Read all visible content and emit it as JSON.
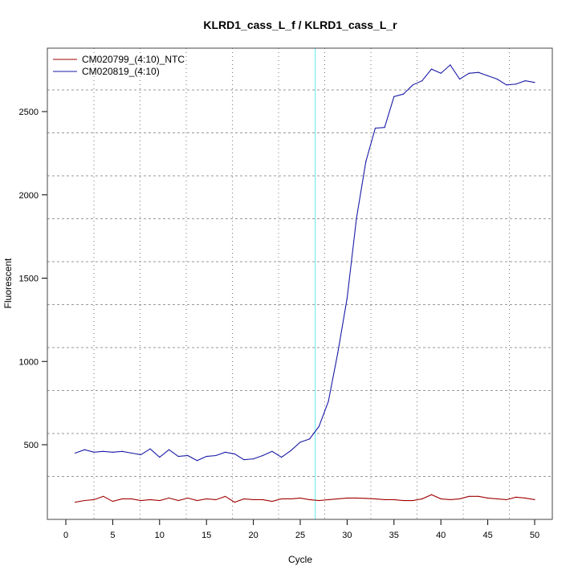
{
  "chart_data": {
    "type": "line",
    "title": "KLRD1_cass_L_f / KLRD1_cass_L_r",
    "xlabel": "Cycle",
    "ylabel": "Fluorescent",
    "xlim": [
      -2,
      52.5
    ],
    "ylim": [
      0,
      2825
    ],
    "xticks": [
      0,
      5,
      10,
      15,
      20,
      25,
      30,
      35,
      40,
      45,
      50
    ],
    "yticks": [
      500,
      1000,
      1500,
      2000,
      2500
    ],
    "threshold_cycle": 26.6,
    "legend_position": "top-left",
    "x": [
      1,
      2,
      3,
      4,
      5,
      6,
      7,
      8,
      9,
      10,
      11,
      12,
      13,
      14,
      15,
      16,
      17,
      18,
      19,
      20,
      21,
      22,
      23,
      24,
      25,
      26,
      27,
      28,
      29,
      30,
      31,
      32,
      33,
      34,
      35,
      36,
      37,
      38,
      39,
      40,
      41,
      42,
      43,
      44,
      45,
      46,
      47,
      48,
      49,
      50
    ],
    "series": [
      {
        "name": "CM020799_(4:10)_NTC",
        "color": "#a00000",
        "values": [
          155,
          165,
          170,
          190,
          160,
          175,
          175,
          165,
          170,
          165,
          180,
          165,
          180,
          165,
          175,
          170,
          190,
          155,
          175,
          170,
          170,
          160,
          175,
          175,
          180,
          170,
          165,
          170,
          175,
          180,
          180,
          178,
          175,
          170,
          170,
          165,
          165,
          175,
          200,
          175,
          170,
          175,
          190,
          190,
          180,
          175,
          170,
          185,
          180,
          170
        ]
      },
      {
        "name": "CM020819_(4:10)",
        "color": "#1a1aa6",
        "values": [
          450,
          470,
          455,
          460,
          455,
          460,
          450,
          440,
          475,
          425,
          470,
          430,
          435,
          405,
          430,
          435,
          455,
          445,
          410,
          415,
          435,
          460,
          425,
          465,
          515,
          535,
          610,
          760,
          1050,
          1380,
          1860,
          2200,
          2400,
          2405,
          2590,
          2605,
          2660,
          2685,
          2755,
          2730,
          2780,
          2695,
          2730,
          2735,
          2715,
          2695,
          2660,
          2665,
          2685,
          2675
        ]
      }
    ]
  }
}
